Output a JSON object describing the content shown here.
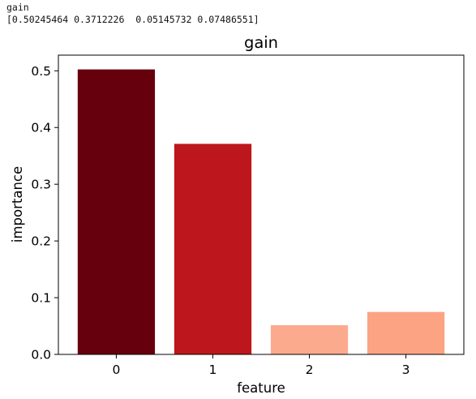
{
  "output": {
    "line1": "gain",
    "line2": "[0.50245464 0.3712226  0.05145732 0.07486551]"
  },
  "chart_data": {
    "type": "bar",
    "title": "gain",
    "xlabel": "feature",
    "ylabel": "importance",
    "categories": [
      "0",
      "1",
      "2",
      "3"
    ],
    "values": [
      0.50245464,
      0.3712226,
      0.05145732,
      0.07486551
    ],
    "bar_colors": [
      "#67000d",
      "#bd161c",
      "#fcaa8d",
      "#fca383"
    ],
    "ylim": [
      0,
      0.5276
    ],
    "yticks": [
      0.0,
      0.1,
      0.2,
      0.3,
      0.4,
      0.5
    ],
    "ytick_labels": [
      "0.0",
      "0.1",
      "0.2",
      "0.3",
      "0.4",
      "0.5"
    ],
    "grid": false,
    "legend": "none"
  }
}
